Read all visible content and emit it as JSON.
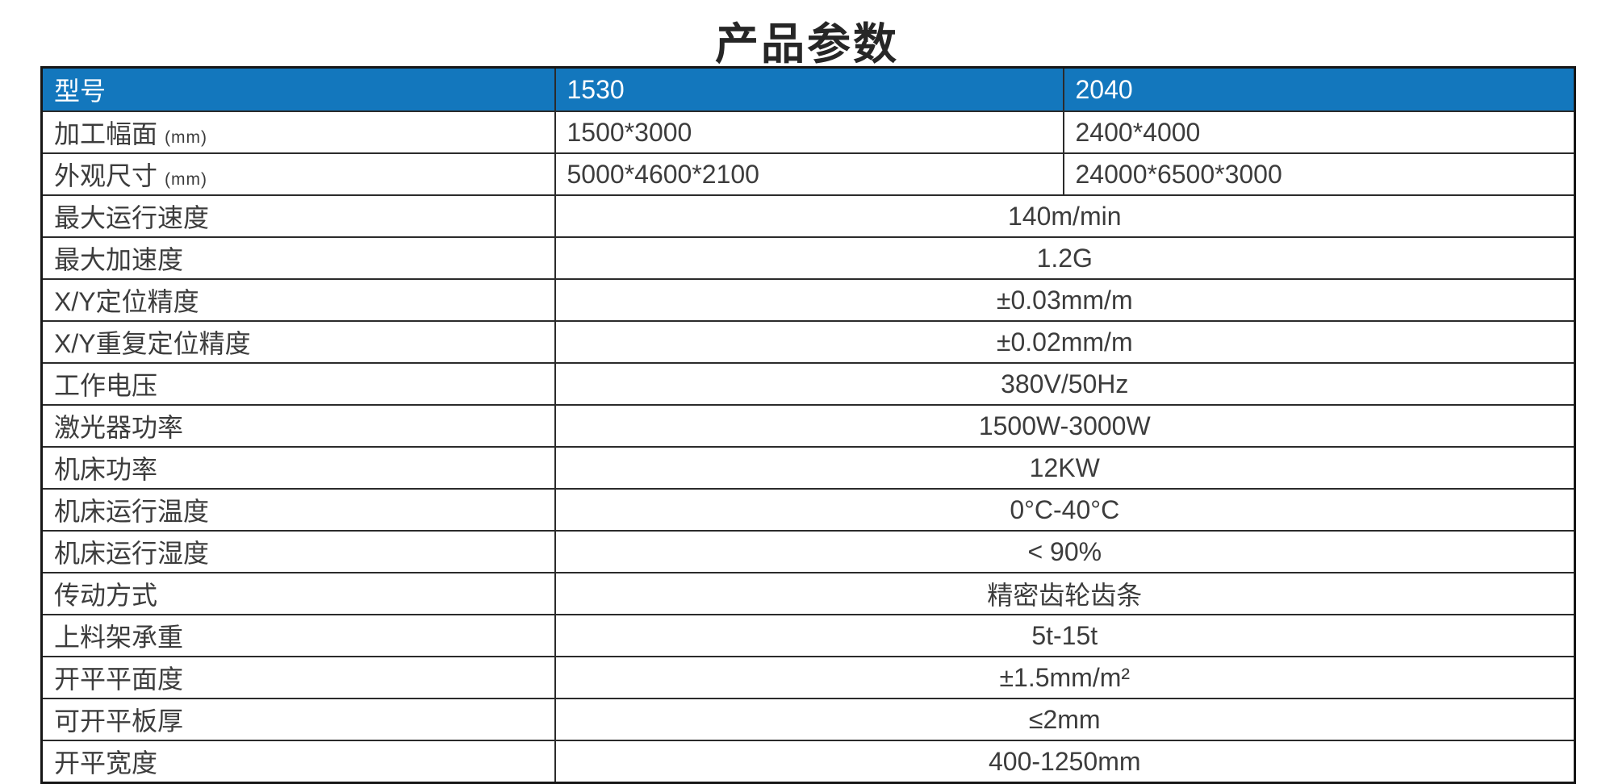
{
  "colors": {
    "header_bg": "#1377bd",
    "header_text": "#ffffff",
    "body_text": "#3c3c3c",
    "border": "#2b2b2b",
    "title_text": "#262626",
    "page_bg": "#ffffff"
  },
  "chart_data": {
    "type": "table",
    "title": "产品参数",
    "header": {
      "col1": "型号",
      "col2": "1530",
      "col3": "2040"
    },
    "split_rows": [
      {
        "label": "加工幅面",
        "suffix": "(mm)",
        "col2": "1500*3000",
        "col3": "2400*4000"
      },
      {
        "label": "外观尺寸",
        "suffix": "(mm)",
        "col2": "5000*4600*2100",
        "col3": "24000*6500*3000"
      }
    ],
    "merged_rows": [
      {
        "label": "最大运行速度",
        "value": "140m/min"
      },
      {
        "label": "最大加速度",
        "value": "1.2G"
      },
      {
        "label": "X/Y定位精度",
        "value": "±0.03mm/m"
      },
      {
        "label": "X/Y重复定位精度",
        "value": "±0.02mm/m"
      },
      {
        "label": "工作电压",
        "value": "380V/50Hz"
      },
      {
        "label": "激光器功率",
        "value": "1500W-3000W"
      },
      {
        "label": "机床功率",
        "value": "12KW"
      },
      {
        "label": "机床运行温度",
        "value": "0°C-40°C"
      },
      {
        "label": "机床运行湿度",
        "value": "< 90%"
      },
      {
        "label": "传动方式",
        "value": "精密齿轮齿条"
      },
      {
        "label": "上料架承重",
        "value": "5t-15t"
      },
      {
        "label": "开平平面度",
        "value": "±1.5mm/m²"
      },
      {
        "label": "可开平板厚",
        "value": "≤2mm"
      },
      {
        "label": "开平宽度",
        "value": "400-1250mm"
      }
    ]
  }
}
